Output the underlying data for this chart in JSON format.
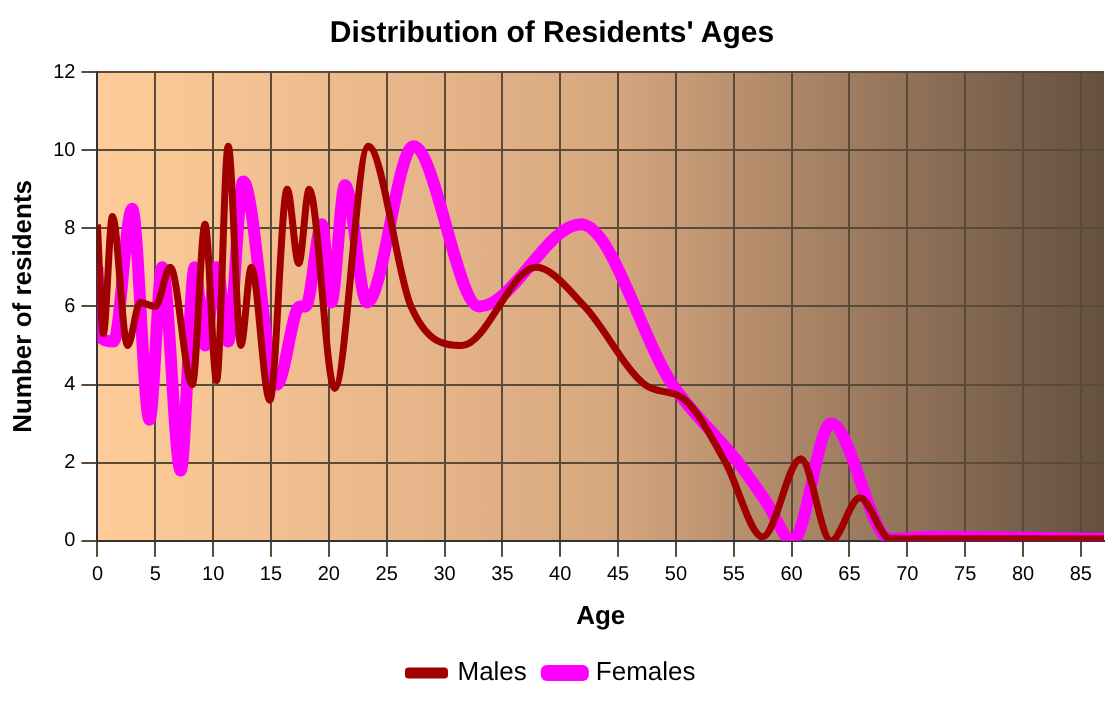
{
  "chart_data": {
    "type": "line",
    "title": "Distribution of Residents' Ages",
    "xlabel": "Age",
    "ylabel": "Number of residents",
    "xlim": [
      0,
      87
    ],
    "xticks": [
      0,
      5,
      10,
      15,
      20,
      25,
      30,
      35,
      40,
      45,
      50,
      55,
      60,
      65,
      70,
      75,
      80,
      85
    ],
    "ylim": [
      0,
      12
    ],
    "yticks": [
      0,
      2,
      4,
      6,
      8,
      10,
      12
    ],
    "grid": true,
    "legend": "bottom",
    "marker": "none",
    "line_style": "solid",
    "series": [
      {
        "name": "Males",
        "color": "#a00000",
        "x": [
          0,
          0.5,
          1.3,
          2.6,
          3.7,
          5,
          6.3,
          8.2,
          9.3,
          10.3,
          11.3,
          12.4,
          13.3,
          14.9,
          16.4,
          17.4,
          18.3,
          20.5,
          23.4,
          27.1,
          31.5,
          37.9,
          42.1,
          47.3,
          50.8,
          54.3,
          57.5,
          60.8,
          63.4,
          65.9,
          68.5,
          75,
          87
        ],
        "values": [
          8.1,
          5.3,
          8.3,
          5,
          6.1,
          6,
          7,
          4,
          8.1,
          4.1,
          10.1,
          5,
          7,
          3.6,
          9,
          7.1,
          9,
          3.9,
          10.1,
          6,
          5,
          7,
          6,
          4,
          3.6,
          2,
          0.1,
          2.1,
          0,
          1.1,
          0.05,
          0.05,
          0.05
        ]
      },
      {
        "name": "Females",
        "color": "#ff00ff",
        "x": [
          0,
          0.3,
          1.4,
          3,
          4.5,
          5.6,
          7.2,
          8.4,
          9.3,
          10.3,
          11.3,
          12.6,
          15.5,
          17.5,
          18,
          19.4,
          20.2,
          21.4,
          23.3,
          27.3,
          33,
          41.8,
          49.7,
          55.4,
          57.8,
          60.1,
          63.4,
          68.5,
          72,
          87
        ],
        "values": [
          7,
          5.2,
          5.1,
          8.5,
          3.1,
          7,
          1.8,
          7,
          5,
          7,
          5.1,
          9.2,
          4,
          6,
          6,
          8.1,
          6.1,
          9.1,
          6.1,
          10.1,
          6,
          8.1,
          4,
          2,
          1,
          0,
          3,
          0.05,
          0.1,
          0.05
        ]
      }
    ]
  }
}
